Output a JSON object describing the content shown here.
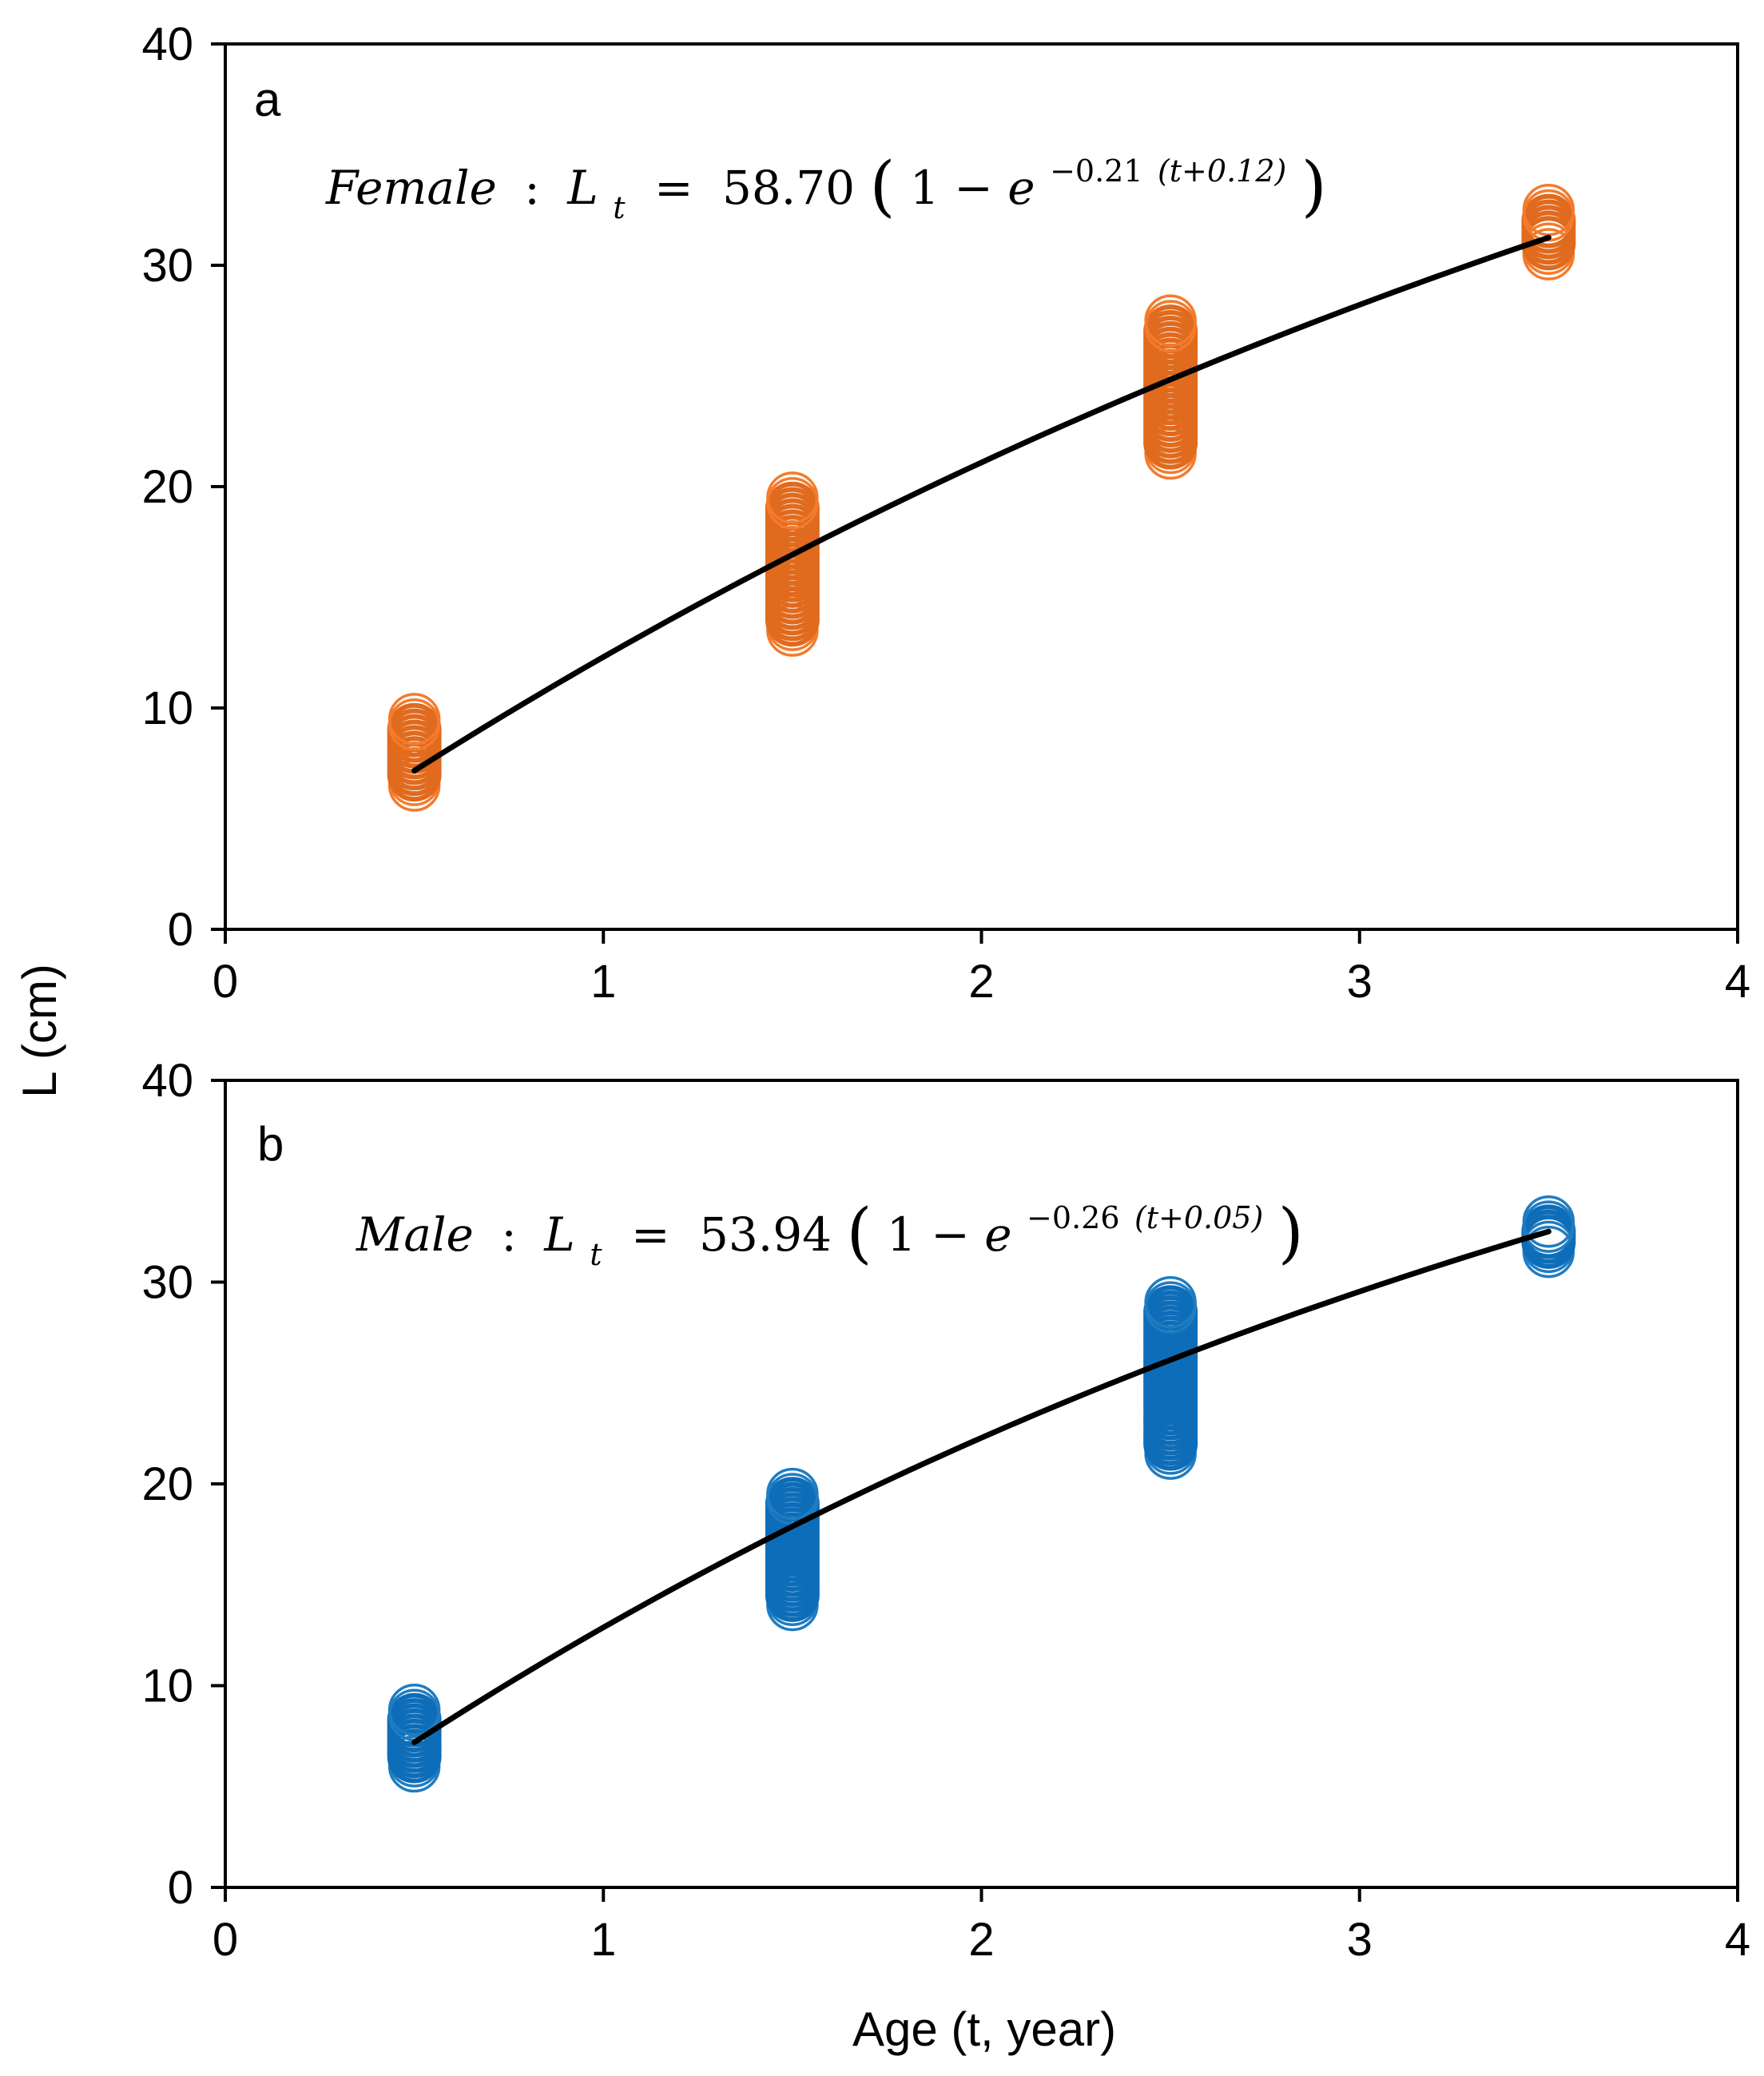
{
  "chart_data": [
    {
      "type": "scatter",
      "panel": "a",
      "series_name": "Female",
      "equation": {
        "label": "Female",
        "sep": ":",
        "lhs": "L",
        "lhs_sub": "t",
        "eq": "=",
        "coef": "58.70",
        "open": "(",
        "inner": "1 − ",
        "base": "e",
        "exp_pre": "−0.21",
        "exp_par": "(t+0.12)",
        "close": ")"
      },
      "x_limits": [
        0,
        4
      ],
      "y_limits": [
        0,
        40
      ],
      "x_ticks": [
        0,
        1,
        2,
        3,
        4
      ],
      "y_ticks": [
        0,
        10,
        20,
        30,
        40
      ],
      "point_color": "#F47B2C",
      "point_color_dense": "#E06A1E",
      "curve": {
        "Linf": 58.7,
        "k": 0.21,
        "t0": -0.12,
        "t_range": [
          0.5,
          3.5
        ]
      },
      "groups": [
        {
          "age": 0.5,
          "min": 6.5,
          "max": 9.5
        },
        {
          "age": 1.5,
          "min": 13.5,
          "max": 19.5
        },
        {
          "age": 2.5,
          "min": 21.5,
          "max": 27.5
        },
        {
          "age": 3.5,
          "min": 30.5,
          "max": 32.5
        }
      ]
    },
    {
      "type": "scatter",
      "panel": "b",
      "series_name": "Male",
      "equation": {
        "label": "Male",
        "sep": ":",
        "lhs": "L",
        "lhs_sub": "t",
        "eq": "=",
        "coef": "53.94",
        "open": "(",
        "inner": "1 − ",
        "base": "e",
        "exp_pre": "−0.26",
        "exp_par": "(t+0.05)",
        "close": ")"
      },
      "x_limits": [
        0,
        4
      ],
      "y_limits": [
        0,
        40
      ],
      "x_ticks": [
        0,
        1,
        2,
        3,
        4
      ],
      "y_ticks": [
        0,
        10,
        20,
        30,
        40
      ],
      "point_color": "#1F7CC1",
      "point_color_dense": "#0E6DB8",
      "curve": {
        "Linf": 53.94,
        "k": 0.26,
        "t0": -0.05,
        "t_range": [
          0.5,
          3.5
        ]
      },
      "groups": [
        {
          "age": 0.5,
          "min": 6.0,
          "max": 8.8
        },
        {
          "age": 1.5,
          "min": 14.0,
          "max": 19.5
        },
        {
          "age": 2.5,
          "min": 21.5,
          "max": 29.0
        },
        {
          "age": 3.5,
          "min": 31.5,
          "max": 33.0
        }
      ]
    }
  ],
  "shared_axes": {
    "ylabel": "L (cm)",
    "xlabel": "Age (t, year)"
  }
}
